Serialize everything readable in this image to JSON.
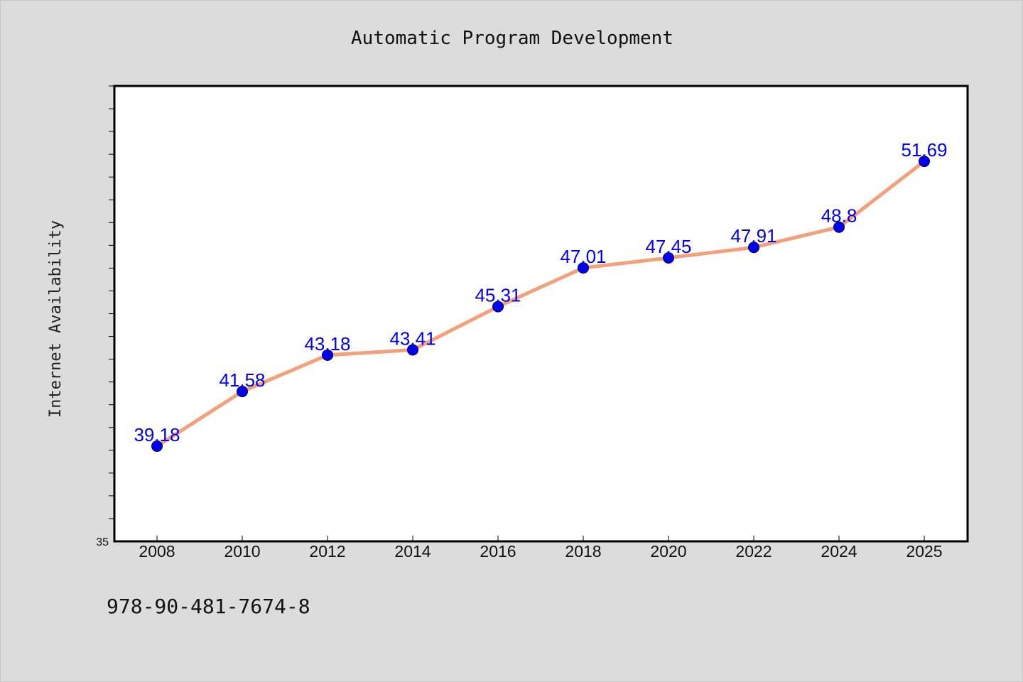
{
  "chart_data": {
    "type": "line",
    "title": "Automatic Program Development",
    "xlabel": "",
    "ylabel": "Internet Availability",
    "categories": [
      "2008",
      "2010",
      "2012",
      "2014",
      "2016",
      "2018",
      "2020",
      "2022",
      "2024",
      "2025"
    ],
    "series": [
      {
        "values": [
          39.18,
          41.58,
          43.18,
          43.41,
          45.31,
          47.01,
          47.45,
          47.91,
          48.8,
          51.69
        ],
        "value_labels": [
          "39.18",
          "41.58",
          "43.18",
          "43.41",
          "45.31",
          "47.01",
          "47.45",
          "47.91",
          "48.8",
          "51.69"
        ],
        "line_color": "#f4a07a",
        "marker_color": "#0000ee"
      }
    ],
    "ylim": [
      35,
      55
    ],
    "yticks_labeled": [
      "35"
    ],
    "grid": false,
    "legend": "none",
    "label_color": "#0000ee"
  },
  "footer": {
    "isbn": "978-90-481-7674-8"
  }
}
